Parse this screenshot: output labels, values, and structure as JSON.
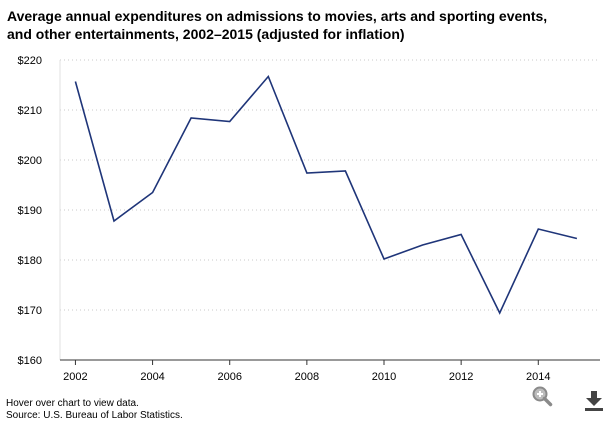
{
  "chart_data": {
    "type": "line",
    "title_line1": "Average annual expenditures on admissions to movies, arts and sporting events,",
    "title_line2": "and other entertainments, 2002–2015 (adjusted for inflation)",
    "xlabel": "",
    "ylabel": "",
    "x": [
      2002,
      2003,
      2004,
      2005,
      2006,
      2007,
      2008,
      2009,
      2010,
      2011,
      2012,
      2013,
      2014,
      2015
    ],
    "values": [
      215.7,
      187.8,
      193.5,
      208.4,
      207.7,
      216.7,
      197.4,
      197.8,
      180.2,
      183.0,
      185.1,
      169.4,
      186.2,
      184.3
    ],
    "xlim": [
      2001.6,
      2015.6
    ],
    "ylim": [
      160,
      220
    ],
    "yticks": [
      160,
      170,
      180,
      190,
      200,
      210,
      220
    ],
    "ytick_labels": [
      "$160",
      "$170",
      "$180",
      "$190",
      "$200",
      "$210",
      "$220"
    ],
    "xticks": [
      2002,
      2004,
      2006,
      2008,
      2010,
      2012,
      2014
    ],
    "xtick_labels": [
      "2002",
      "2004",
      "2006",
      "2008",
      "2010",
      "2012",
      "2014"
    ],
    "grid": "horizontal-dotted",
    "line_color": "#1f3579"
  },
  "footer": {
    "hint": "Hover over chart to view data.",
    "source": "Source: U.S. Bureau of Labor Statistics."
  },
  "icons": {
    "zoom": "zoom-icon",
    "download": "download-icon"
  }
}
